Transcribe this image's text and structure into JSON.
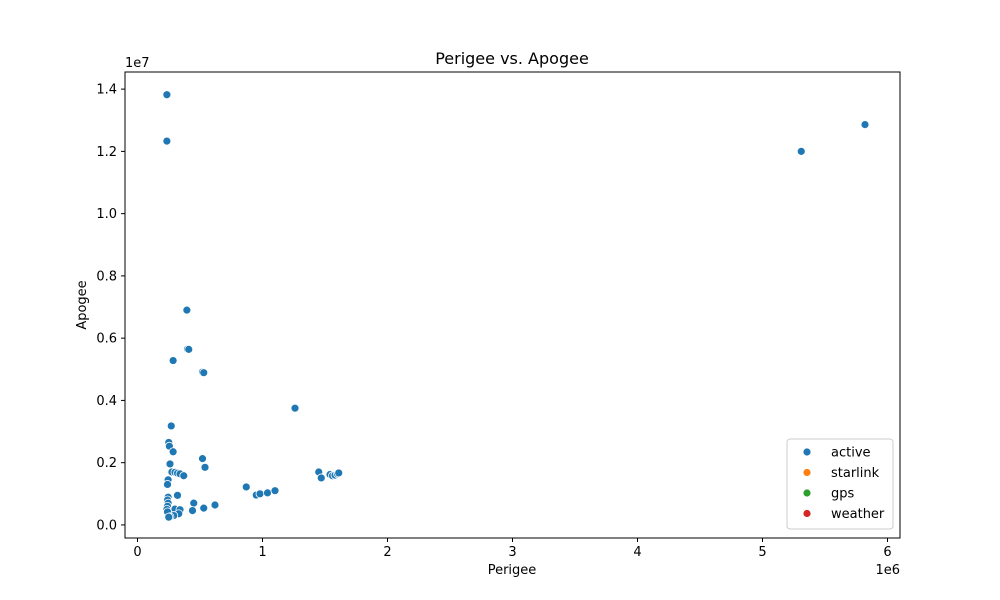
{
  "chart_data": {
    "type": "scatter",
    "title": "Perigee vs. Apogee",
    "xlabel": "Perigee",
    "ylabel": "Apogee",
    "x_offset_label": "1e6",
    "y_offset_label": "1e7",
    "xlim": [
      -100000,
      6100000
    ],
    "ylim": [
      -420000,
      14550000
    ],
    "xticks": [
      0,
      1000000,
      2000000,
      3000000,
      4000000,
      5000000,
      6000000
    ],
    "xtick_labels": [
      "0",
      "1",
      "2",
      "3",
      "4",
      "5",
      "6"
    ],
    "yticks": [
      0,
      2000000,
      4000000,
      6000000,
      8000000,
      10000000,
      12000000,
      14000000
    ],
    "ytick_labels": [
      "0.0",
      "0.2",
      "0.4",
      "0.6",
      "0.8",
      "1.0",
      "1.2",
      "1.4"
    ],
    "grid": false,
    "legend_position": "bottom-right",
    "series": [
      {
        "name": "active",
        "color": "#1f77b4",
        "points": [
          [
            235000,
            13820000
          ],
          [
            235000,
            12330000
          ],
          [
            5310000,
            12000000
          ],
          [
            5820000,
            12860000
          ],
          [
            395000,
            6900000
          ],
          [
            400000,
            5650000
          ],
          [
            410000,
            5640000
          ],
          [
            285000,
            5280000
          ],
          [
            520000,
            4910000
          ],
          [
            530000,
            4890000
          ],
          [
            1260000,
            3750000
          ],
          [
            270000,
            3180000
          ],
          [
            250000,
            2650000
          ],
          [
            255000,
            2530000
          ],
          [
            285000,
            2350000
          ],
          [
            520000,
            2130000
          ],
          [
            540000,
            1850000
          ],
          [
            260000,
            1960000
          ],
          [
            275000,
            1700000
          ],
          [
            300000,
            1690000
          ],
          [
            320000,
            1660000
          ],
          [
            340000,
            1640000
          ],
          [
            370000,
            1580000
          ],
          [
            245000,
            1450000
          ],
          [
            240000,
            1300000
          ],
          [
            320000,
            950000
          ],
          [
            245000,
            890000
          ],
          [
            240000,
            800000
          ],
          [
            245000,
            700000
          ],
          [
            240000,
            600000
          ],
          [
            235000,
            500000
          ],
          [
            240000,
            420000
          ],
          [
            300000,
            510000
          ],
          [
            340000,
            490000
          ],
          [
            330000,
            360000
          ],
          [
            290000,
            300000
          ],
          [
            260000,
            260000
          ],
          [
            250000,
            250000
          ],
          [
            450000,
            700000
          ],
          [
            440000,
            460000
          ],
          [
            530000,
            540000
          ],
          [
            620000,
            640000
          ],
          [
            870000,
            1220000
          ],
          [
            950000,
            960000
          ],
          [
            980000,
            1000000
          ],
          [
            1040000,
            1030000
          ],
          [
            1100000,
            1100000
          ],
          [
            1450000,
            1700000
          ],
          [
            1470000,
            1510000
          ],
          [
            1540000,
            1620000
          ],
          [
            1560000,
            1580000
          ],
          [
            1580000,
            1600000
          ],
          [
            1600000,
            1640000
          ],
          [
            1610000,
            1670000
          ]
        ]
      },
      {
        "name": "starlink",
        "color": "#ff7f0e",
        "points": []
      },
      {
        "name": "gps",
        "color": "#2ca02c",
        "points": []
      },
      {
        "name": "weather",
        "color": "#d62728",
        "points": []
      }
    ]
  }
}
